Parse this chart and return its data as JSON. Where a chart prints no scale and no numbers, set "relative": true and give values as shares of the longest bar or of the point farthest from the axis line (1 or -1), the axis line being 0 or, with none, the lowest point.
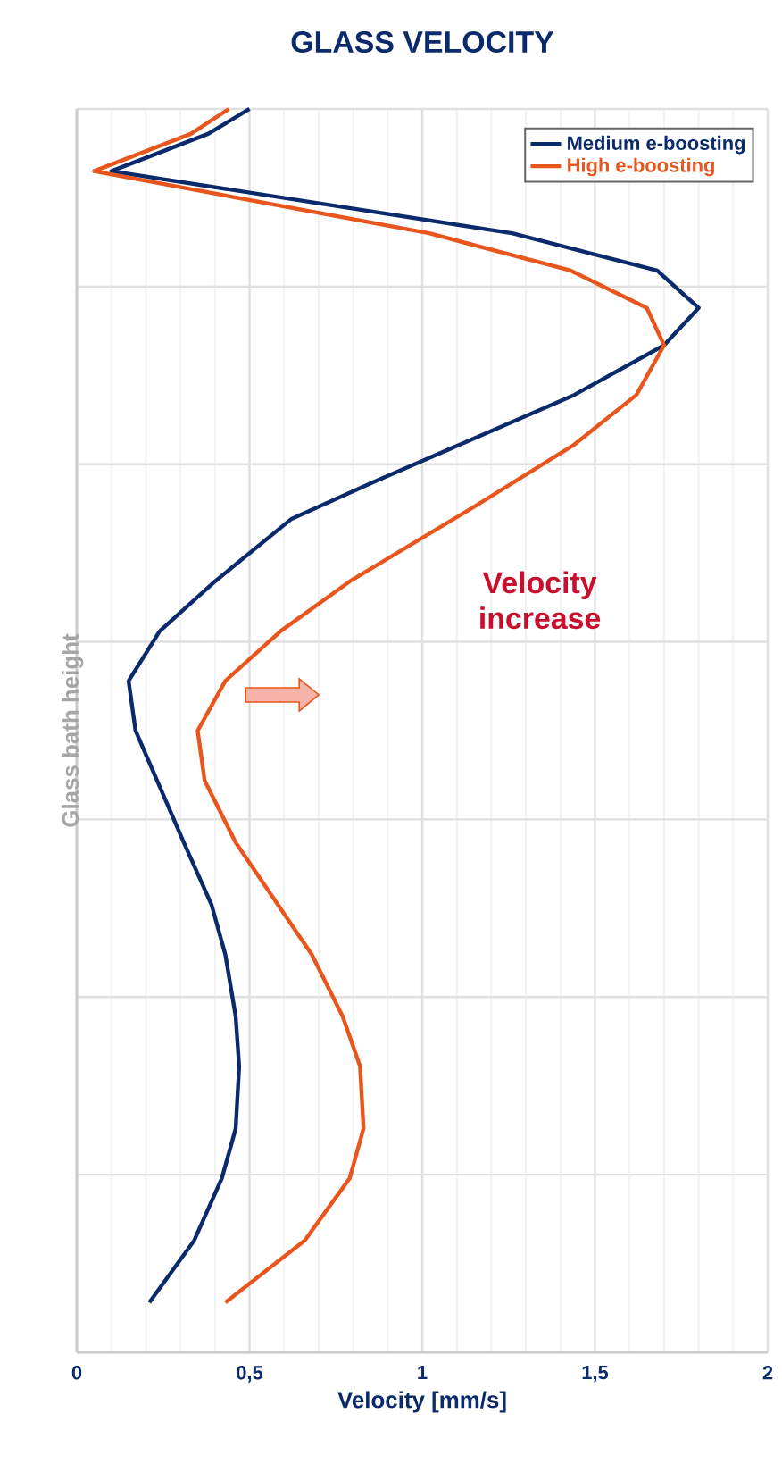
{
  "chart_data": {
    "type": "line",
    "title": "GLASS VELOCITY",
    "xlabel": "Velocity [mm/s]",
    "ylabel": "Glass bath height",
    "annotations": [
      "Velocity increase"
    ],
    "xlim": [
      0,
      2
    ],
    "xticks": [
      0,
      {
        "value": 0.5,
        "label": "0,5"
      },
      1,
      {
        "value": 1.5,
        "label": "1,5"
      },
      2
    ],
    "relative": true,
    "tick_labels": "x",
    "grid": true,
    "legend": "top right",
    "marker": "none",
    "line_style": "solid",
    "series": [
      {
        "name": "Medium e-boosting",
        "color": "#0b2a6b",
        "x": [
          0.21,
          0.34,
          0.42,
          0.46,
          0.47,
          0.46,
          0.43,
          0.39,
          0.31,
          0.17,
          0.15,
          0.24,
          0.4,
          0.62,
          0.86,
          1.44,
          1.7,
          1.8,
          1.68,
          1.26,
          0.1,
          0.38,
          0.5
        ],
        "values": [
          0.04,
          0.09,
          0.14,
          0.18,
          0.23,
          0.27,
          0.32,
          0.36,
          0.41,
          0.5,
          0.54,
          0.58,
          0.62,
          0.67,
          0.7,
          0.77,
          0.81,
          0.84,
          0.87,
          0.9,
          0.95,
          0.98,
          1
        ]
      },
      {
        "name": "High e-boosting",
        "color": "#e8561e",
        "x": [
          0.43,
          0.66,
          0.79,
          0.83,
          0.82,
          0.77,
          0.68,
          0.46,
          0.37,
          0.35,
          0.43,
          0.59,
          0.79,
          1.15,
          1.44,
          1.62,
          1.7,
          1.65,
          1.43,
          1.02,
          0.05,
          0.33,
          0.44
        ],
        "values": [
          0.04,
          0.09,
          0.14,
          0.18,
          0.23,
          0.27,
          0.32,
          0.41,
          0.46,
          0.5,
          0.54,
          0.58,
          0.62,
          0.68,
          0.73,
          0.77,
          0.81,
          0.84,
          0.87,
          0.9,
          0.95,
          0.98,
          1
        ]
      }
    ]
  }
}
